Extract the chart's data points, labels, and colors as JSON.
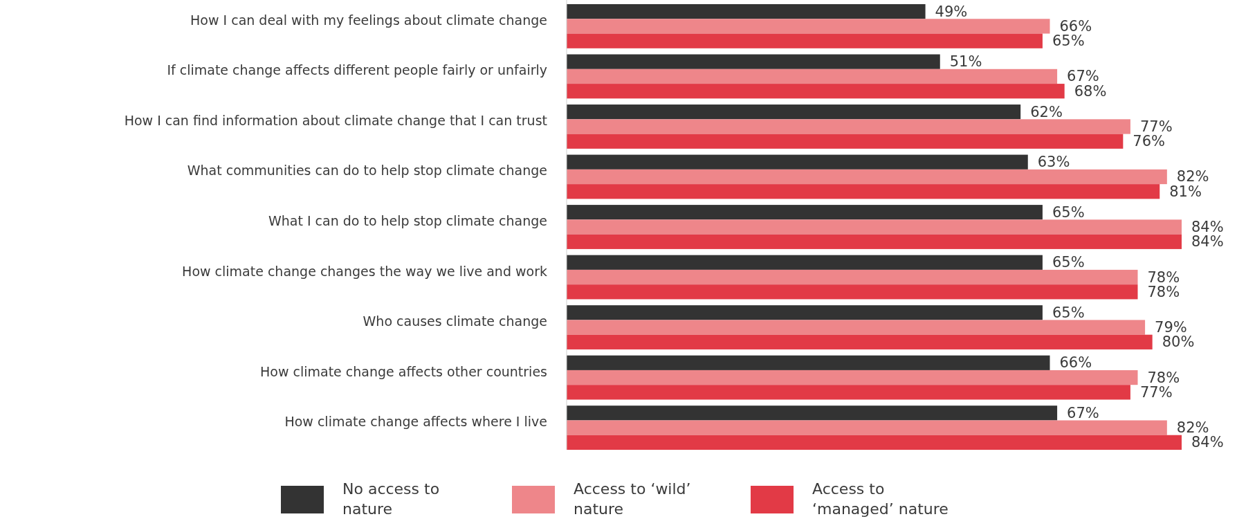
{
  "chart_data": {
    "type": "bar",
    "orientation": "horizontal",
    "legend": "bottom",
    "categories": [
      "How I can deal with my feelings about climate change",
      "If climate change affects different people fairly or unfairly",
      "How I can find information about climate change that I can trust",
      "What communities can do to help stop climate change",
      "What I can do to help stop climate change",
      "How climate change changes the way we live and work",
      "Who causes climate change",
      "How climate change affects other countries",
      "How climate change affects where I live"
    ],
    "series": [
      {
        "name": "No access to nature",
        "color": "#333333",
        "values": [
          49,
          51,
          62,
          63,
          65,
          65,
          65,
          66,
          67
        ],
        "value_labels": [
          "49%",
          "51%",
          "62%",
          "63%",
          "65%",
          "65%",
          "65%",
          "66%",
          "67%"
        ]
      },
      {
        "name": "Access to ‘wild’ nature",
        "color": "#ee868a",
        "values": [
          66,
          67,
          77,
          82,
          84,
          78,
          79,
          78,
          82
        ],
        "value_labels": [
          "66%",
          "67%",
          "77%",
          "82%",
          "84%",
          "78%",
          "79%",
          "78%",
          "82%"
        ]
      },
      {
        "name": "Access to ‘managed’ nature",
        "color": "#e23a46",
        "values": [
          65,
          68,
          76,
          81,
          84,
          78,
          80,
          77,
          84
        ],
        "value_labels": [
          "65%",
          "68%",
          "76%",
          "81%",
          "84%",
          "78%",
          "80%",
          "77%",
          "84%"
        ]
      }
    ]
  }
}
